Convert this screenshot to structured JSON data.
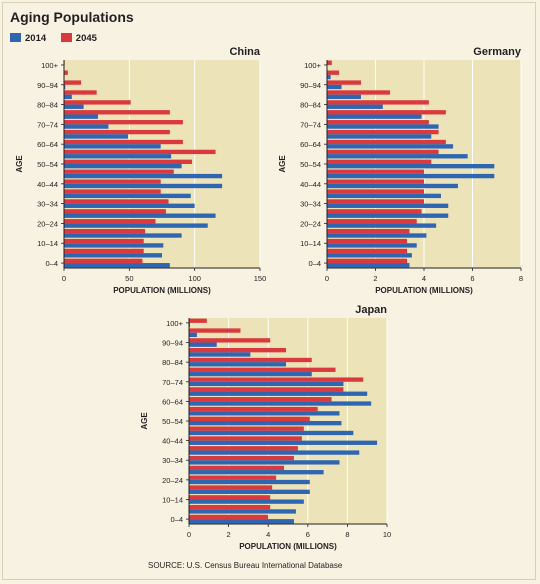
{
  "title": "Aging Populations",
  "legend": [
    {
      "label": "2014",
      "color": "#2e66b1"
    },
    {
      "label": "2045",
      "color": "#da3a3e"
    }
  ],
  "source": "SOURCE: U.S. Census Bureau International Database",
  "colors": {
    "plot_bg": "#ede3b8",
    "grid": "#ffffff",
    "series_2014": "#2e66b1",
    "series_2045": "#da3a3e"
  },
  "chart_data": [
    {
      "type": "bar",
      "orientation": "horizontal",
      "title": "China",
      "xlabel": "POPULATION (MILLIONS)",
      "ylabel": "AGE",
      "xlim": [
        0,
        150
      ],
      "xticks": [
        0,
        50,
        100,
        150
      ],
      "categories": [
        "0–4",
        "5–9",
        "10–14",
        "15–19",
        "20–24",
        "25–29",
        "30–34",
        "35–39",
        "40–44",
        "45–49",
        "50–54",
        "55–59",
        "60–64",
        "65–69",
        "70–74",
        "75–79",
        "80–84",
        "85–89",
        "90–94",
        "95–99",
        "100+"
      ],
      "category_labels_shown": [
        "0–4",
        "10–14",
        "20–24",
        "30–34",
        "40–44",
        "50–54",
        "60–64",
        "70–74",
        "80–84",
        "90–94",
        "100+"
      ],
      "series": [
        {
          "name": "2014",
          "values": [
            81,
            75,
            76,
            90,
            110,
            116,
            100,
            97,
            121,
            121,
            90,
            82,
            74,
            49,
            34,
            26,
            15,
            6,
            1,
            0.2,
            0.1
          ]
        },
        {
          "name": "2045",
          "values": [
            60,
            61,
            61,
            62,
            70,
            78,
            80,
            74,
            74,
            84,
            98,
            116,
            91,
            81,
            91,
            81,
            51,
            25,
            13,
            3,
            0.5
          ]
        }
      ]
    },
    {
      "type": "bar",
      "orientation": "horizontal",
      "title": "Germany",
      "xlabel": "POPULATION (MILLIONS)",
      "ylabel": "AGE",
      "xlim": [
        0,
        8
      ],
      "xticks": [
        0,
        2,
        4,
        6,
        8
      ],
      "categories": [
        "0–4",
        "5–9",
        "10–14",
        "15–19",
        "20–24",
        "25–29",
        "30–34",
        "35–39",
        "40–44",
        "45–49",
        "50–54",
        "55–59",
        "60–64",
        "65–69",
        "70–74",
        "75–79",
        "80–84",
        "85–89",
        "90–94",
        "95–99",
        "100+"
      ],
      "category_labels_shown": [
        "0–4",
        "10–14",
        "20–24",
        "30–34",
        "40–44",
        "50–54",
        "60–64",
        "70–74",
        "80–84",
        "90–94",
        "100+"
      ],
      "series": [
        {
          "name": "2014",
          "values": [
            3.4,
            3.5,
            3.7,
            4.1,
            4.5,
            5.0,
            5.0,
            4.7,
            5.4,
            6.9,
            6.9,
            5.8,
            5.2,
            4.3,
            4.6,
            3.9,
            2.3,
            1.4,
            0.6,
            0.15,
            0.02
          ]
        },
        {
          "name": "2045",
          "values": [
            3.3,
            3.3,
            3.3,
            3.4,
            3.7,
            3.9,
            4.0,
            4.0,
            4.0,
            4.0,
            4.3,
            4.6,
            4.9,
            4.6,
            4.2,
            4.9,
            4.2,
            2.6,
            1.4,
            0.5,
            0.2
          ]
        }
      ]
    },
    {
      "type": "bar",
      "orientation": "horizontal",
      "title": "Japan",
      "xlabel": "POPULATION (MILLIONS)",
      "ylabel": "AGE",
      "xlim": [
        0,
        10
      ],
      "xticks": [
        0,
        2,
        4,
        6,
        8,
        10
      ],
      "categories": [
        "0–4",
        "5–9",
        "10–14",
        "15–19",
        "20–24",
        "25–29",
        "30–34",
        "35–39",
        "40–44",
        "45–49",
        "50–54",
        "55–59",
        "60–64",
        "65–69",
        "70–74",
        "75–79",
        "80–84",
        "85–89",
        "90–94",
        "95–99",
        "100+"
      ],
      "category_labels_shown": [
        "0–4",
        "10–14",
        "20–24",
        "30–34",
        "40–44",
        "50–54",
        "60–64",
        "70–74",
        "80–84",
        "90–94",
        "100+"
      ],
      "series": [
        {
          "name": "2014",
          "values": [
            5.3,
            5.4,
            5.8,
            6.1,
            6.1,
            6.8,
            7.6,
            8.6,
            9.5,
            8.3,
            7.7,
            7.6,
            9.2,
            9.0,
            7.8,
            6.2,
            4.9,
            3.1,
            1.4,
            0.4,
            0.05
          ]
        },
        {
          "name": "2045",
          "values": [
            4.0,
            4.1,
            4.1,
            4.2,
            4.4,
            4.8,
            5.3,
            5.5,
            5.7,
            5.8,
            6.1,
            6.5,
            7.2,
            7.8,
            8.8,
            7.4,
            6.2,
            4.9,
            4.1,
            2.6,
            0.9
          ]
        }
      ]
    }
  ]
}
